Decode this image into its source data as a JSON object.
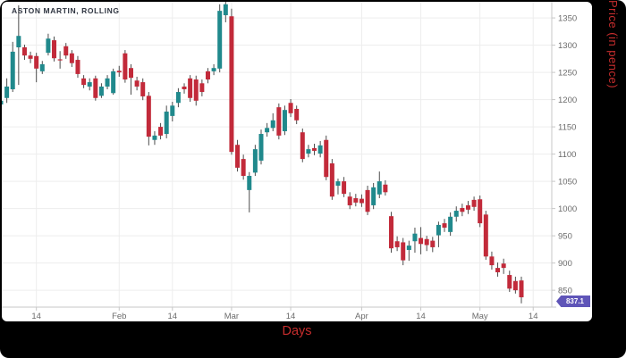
{
  "chart_data": {
    "type": "candlestick",
    "title": "ASTON MARTIN, ROLLING",
    "xlabel": "Days",
    "ylabel": "Price (in pence)",
    "last_price": 837.1,
    "ylim": [
      819,
      1380
    ],
    "grid": true,
    "y_ticks": [
      850,
      900,
      950,
      1000,
      1050,
      1100,
      1150,
      1200,
      1250,
      1300,
      1350
    ],
    "x_ticks": [
      {
        "pos": 6,
        "label": "14"
      },
      {
        "pos": 20,
        "label": "Feb"
      },
      {
        "pos": 29,
        "label": "14"
      },
      {
        "pos": 39,
        "label": "Mar"
      },
      {
        "pos": 49,
        "label": "14"
      },
      {
        "pos": 61,
        "label": "Apr"
      },
      {
        "pos": 71,
        "label": "14"
      },
      {
        "pos": 81,
        "label": "May"
      },
      {
        "pos": 90,
        "label": "14"
      }
    ],
    "colors": {
      "up": "#20898c",
      "down": "#c22a3a",
      "wick": "#4d4d4d",
      "grid": "#ededed",
      "axis": "#c7c7c7",
      "tick_text": "#6b6b6b",
      "axis_label": "#c62d2d",
      "badge_bg": "#5f55b8",
      "badge_text": "#ffffff",
      "title_text": "#2e3440"
    },
    "candles_format": [
      "open",
      "high",
      "low",
      "close"
    ],
    "candles": [
      [
        1191,
        1201,
        1188,
        1198
      ],
      [
        1203,
        1239,
        1194,
        1224
      ],
      [
        1219,
        1306,
        1214,
        1288
      ],
      [
        1296,
        1373,
        1227,
        1317
      ],
      [
        1296,
        1301,
        1273,
        1281
      ],
      [
        1281,
        1288,
        1267,
        1275
      ],
      [
        1280,
        1286,
        1232,
        1257
      ],
      [
        1252,
        1271,
        1247,
        1265
      ],
      [
        1286,
        1321,
        1281,
        1312
      ],
      [
        1309,
        1316,
        1270,
        1276
      ],
      [
        1274,
        1289,
        1257,
        1272
      ],
      [
        1298,
        1304,
        1275,
        1281
      ],
      [
        1285,
        1291,
        1260,
        1267
      ],
      [
        1273,
        1280,
        1240,
        1247
      ],
      [
        1239,
        1245,
        1221,
        1227
      ],
      [
        1224,
        1239,
        1217,
        1232
      ],
      [
        1239,
        1244,
        1198,
        1203
      ],
      [
        1207,
        1230,
        1203,
        1224
      ],
      [
        1224,
        1245,
        1219,
        1239
      ],
      [
        1212,
        1257,
        1209,
        1252
      ],
      [
        1253,
        1262,
        1242,
        1250
      ],
      [
        1285,
        1291,
        1231,
        1237
      ],
      [
        1258,
        1265,
        1209,
        1240
      ],
      [
        1235,
        1242,
        1217,
        1224
      ],
      [
        1232,
        1239,
        1199,
        1206
      ],
      [
        1207,
        1214,
        1116,
        1132
      ],
      [
        1126,
        1142,
        1117,
        1134
      ],
      [
        1150,
        1157,
        1127,
        1134
      ],
      [
        1137,
        1189,
        1129,
        1178
      ],
      [
        1170,
        1196,
        1160,
        1189
      ],
      [
        1194,
        1221,
        1186,
        1214
      ],
      [
        1224,
        1230,
        1211,
        1219
      ],
      [
        1239,
        1245,
        1196,
        1203
      ],
      [
        1237,
        1244,
        1189,
        1198
      ],
      [
        1230,
        1237,
        1206,
        1214
      ],
      [
        1252,
        1258,
        1230,
        1237
      ],
      [
        1252,
        1265,
        1245,
        1258
      ],
      [
        1257,
        1375,
        1250,
        1363
      ],
      [
        1355,
        1380,
        1342,
        1375
      ],
      [
        1353,
        1367,
        1099,
        1104
      ],
      [
        1117,
        1126,
        1068,
        1075
      ],
      [
        1091,
        1099,
        1053,
        1060
      ],
      [
        1034,
        1067,
        993,
        1060
      ],
      [
        1066,
        1117,
        1060,
        1109
      ],
      [
        1088,
        1145,
        1081,
        1137
      ],
      [
        1140,
        1157,
        1132,
        1148
      ],
      [
        1148,
        1175,
        1142,
        1162
      ],
      [
        1186,
        1193,
        1127,
        1134
      ],
      [
        1142,
        1189,
        1135,
        1181
      ],
      [
        1194,
        1201,
        1168,
        1175
      ],
      [
        1183,
        1189,
        1155,
        1162
      ],
      [
        1140,
        1147,
        1085,
        1091
      ],
      [
        1101,
        1117,
        1094,
        1109
      ],
      [
        1111,
        1119,
        1098,
        1106
      ],
      [
        1101,
        1124,
        1094,
        1116
      ],
      [
        1126,
        1134,
        1052,
        1058
      ],
      [
        1083,
        1091,
        1016,
        1022
      ],
      [
        1042,
        1055,
        1026,
        1050
      ],
      [
        1050,
        1058,
        1021,
        1027
      ],
      [
        1022,
        1030,
        999,
        1006
      ],
      [
        1019,
        1027,
        1004,
        1011
      ],
      [
        1018,
        1026,
        1003,
        1010
      ],
      [
        1034,
        1042,
        988,
        994
      ],
      [
        1006,
        1047,
        999,
        1039
      ],
      [
        1026,
        1068,
        1019,
        1050
      ],
      [
        1044,
        1052,
        1024,
        1030
      ],
      [
        986,
        994,
        919,
        927
      ],
      [
        940,
        949,
        922,
        929
      ],
      [
        938,
        946,
        896,
        905
      ],
      [
        924,
        941,
        904,
        932
      ],
      [
        940,
        965,
        919,
        954
      ],
      [
        946,
        966,
        916,
        935
      ],
      [
        944,
        950,
        922,
        933
      ],
      [
        941,
        948,
        920,
        929
      ],
      [
        951,
        976,
        929,
        970
      ],
      [
        973,
        981,
        957,
        965
      ],
      [
        957,
        993,
        950,
        985
      ],
      [
        985,
        1004,
        976,
        996
      ],
      [
        1001,
        1009,
        986,
        994
      ],
      [
        1006,
        1014,
        990,
        998
      ],
      [
        1016,
        1022,
        996,
        1003
      ],
      [
        1017,
        1024,
        966,
        973
      ],
      [
        989,
        996,
        906,
        912
      ],
      [
        912,
        921,
        888,
        896
      ],
      [
        891,
        901,
        875,
        883
      ],
      [
        899,
        908,
        880,
        891
      ],
      [
        878,
        886,
        847,
        853
      ],
      [
        867,
        875,
        844,
        850
      ],
      [
        868,
        875,
        826,
        837.1
      ]
    ]
  }
}
